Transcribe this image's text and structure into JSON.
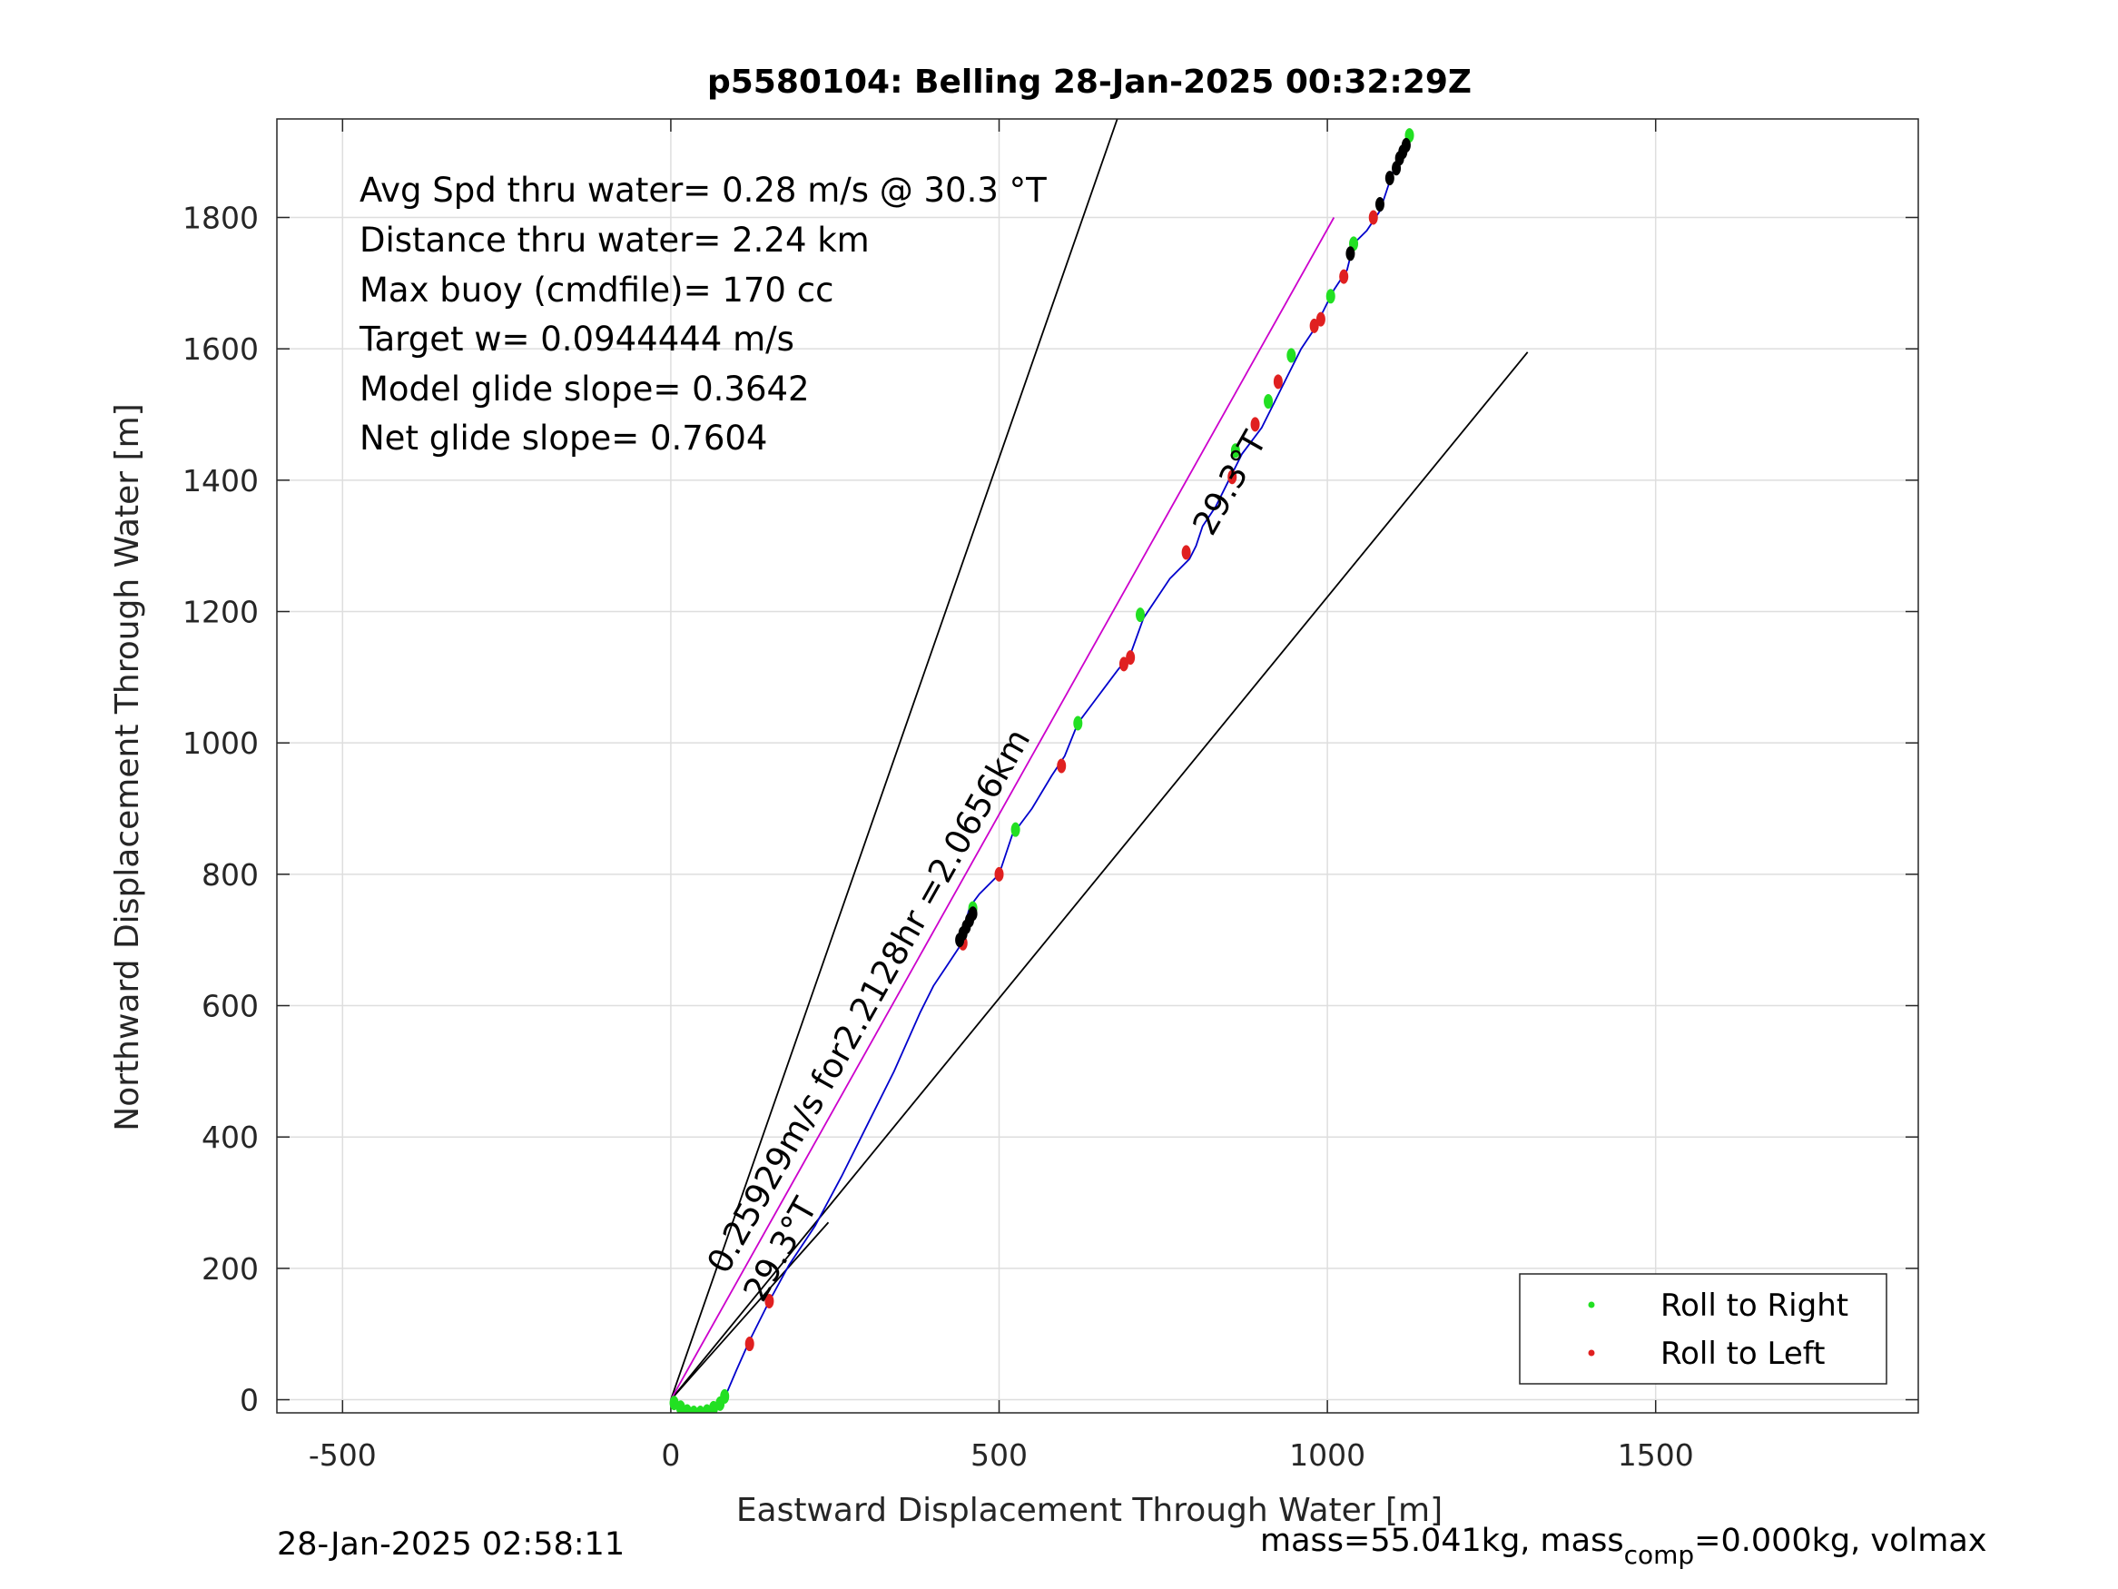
{
  "chart_data": {
    "type": "scatter",
    "title": "p5580104: Belling 28-Jan-2025 00:32:29Z",
    "xlabel": "Eastward Displacement Through Water [m]",
    "ylabel": "Northward Displacement Through Water [m]",
    "xlim": [
      -600,
      1900
    ],
    "ylim": [
      -20,
      1950
    ],
    "xticks": [
      -500,
      0,
      500,
      1000,
      1500
    ],
    "yticks": [
      0,
      200,
      400,
      600,
      800,
      1000,
      1200,
      1400,
      1600,
      1800
    ],
    "grid": true,
    "legend_position": "bottom-right",
    "stats": [
      "Avg Spd thru water=  0.28 m/s @  30.3 °T",
      "Distance thru water=  2.24 km",
      "Max buoy (cmdfile)= 170 cc",
      "Target w= 0.0944444 m/s",
      "Model glide slope= 0.3642",
      "Net glide slope= 0.7604"
    ],
    "annotations": {
      "speed_label": "0.25929m/s for2.2128hr =2.0656km",
      "heading_label_lower": "29.3°T",
      "heading_label_upper": "29.3°T"
    },
    "reference_lines": [
      {
        "name": "cone-left",
        "color": "#000000",
        "x": [
          0,
          680
        ],
        "y": [
          0,
          1950
        ]
      },
      {
        "name": "cone-right",
        "color": "#000000",
        "x": [
          0,
          1305
        ],
        "y": [
          0,
          1595
        ]
      },
      {
        "name": "heading-line",
        "color": "#000000",
        "x": [
          0,
          240
        ],
        "y": [
          0,
          270
        ]
      },
      {
        "name": "net-displacement",
        "color": "#cc00cc",
        "x": [
          0,
          1010
        ],
        "y": [
          0,
          1800
        ]
      }
    ],
    "track": {
      "color": "#0000cc",
      "x": [
        0,
        15,
        40,
        60,
        78,
        85,
        100,
        120,
        150,
        180,
        220,
        260,
        300,
        340,
        380,
        400,
        420,
        440,
        445,
        455,
        470,
        500,
        520,
        550,
        580,
        600,
        620,
        650,
        680,
        700,
        720,
        760,
        790,
        800,
        810,
        830,
        850,
        870,
        900,
        920,
        940,
        960,
        980,
        990,
        1000,
        1010,
        1030,
        1040,
        1060,
        1080,
        1090,
        1100,
        1110,
        1130
      ],
      "y": [
        0,
        -10,
        -20,
        -15,
        -5,
        10,
        45,
        90,
        150,
        205,
        265,
        340,
        420,
        500,
        590,
        630,
        660,
        690,
        710,
        750,
        770,
        800,
        860,
        900,
        950,
        980,
        1030,
        1070,
        1110,
        1135,
        1190,
        1250,
        1280,
        1300,
        1330,
        1360,
        1400,
        1440,
        1480,
        1520,
        1560,
        1600,
        1630,
        1650,
        1670,
        1690,
        1720,
        1760,
        1780,
        1810,
        1840,
        1870,
        1890,
        1925
      ]
    },
    "series": [
      {
        "name": "Roll to Right",
        "color": "#22e022",
        "x": [
          5,
          15,
          25,
          35,
          45,
          55,
          65,
          75,
          82,
          460,
          525,
          620,
          715,
          860,
          910,
          945,
          1005,
          1040,
          1125
        ],
        "y": [
          -5,
          -12,
          -18,
          -20,
          -20,
          -18,
          -13,
          -6,
          5,
          748,
          868,
          1030,
          1195,
          1445,
          1520,
          1590,
          1680,
          1760,
          1925
        ]
      },
      {
        "name": "Roll to Left",
        "color": "#e02020",
        "x": [
          120,
          150,
          445,
          500,
          595,
          690,
          700,
          785,
          855,
          890,
          925,
          980,
          990,
          1025,
          1070
        ],
        "y": [
          85,
          150,
          695,
          800,
          965,
          1120,
          1130,
          1290,
          1405,
          1485,
          1550,
          1635,
          1645,
          1710,
          1800
        ]
      },
      {
        "name": "",
        "color": "#000000",
        "x": [
          440,
          445,
          450,
          455,
          460,
          1035,
          1080,
          1095,
          1105,
          1110,
          1115,
          1120
        ],
        "y": [
          700,
          710,
          720,
          730,
          740,
          1745,
          1820,
          1860,
          1875,
          1890,
          1900,
          1910
        ]
      }
    ]
  },
  "footer": {
    "timestamp": "28-Jan-2025 02:58:11",
    "mass_prefix": "mass=55.041kg, mass",
    "mass_subscript": "comp",
    "mass_suffix": "=0.000kg, volmax"
  }
}
